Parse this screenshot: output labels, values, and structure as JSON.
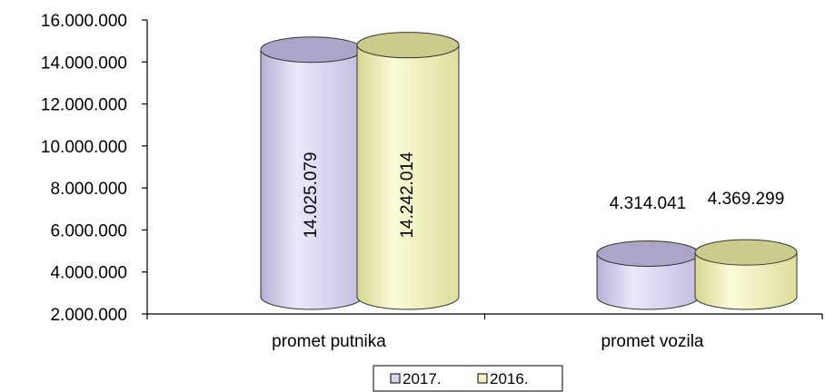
{
  "chart_data": {
    "type": "bar",
    "style": "3d-cylinder",
    "categories": [
      "promet putnika",
      "promet vozila"
    ],
    "series": [
      {
        "name": "2017.",
        "values": [
          14025079,
          4314041
        ],
        "value_labels": [
          "14.025.079",
          "4.314.041"
        ],
        "color": "#D9D3EE"
      },
      {
        "name": "2016.",
        "values": [
          14242014,
          4369299
        ],
        "value_labels": [
          "14.242.014",
          "4.369.299"
        ],
        "color": "#F0F0C2"
      }
    ],
    "y_ticks": [
      "2.000.000",
      "4.000.000",
      "6.000.000",
      "8.000.000",
      "10.000.000",
      "12.000.000",
      "14.000.000",
      "16.000.000"
    ],
    "ylim": [
      2000000,
      16000000
    ],
    "grid": false,
    "legend": {
      "position": "bottom",
      "labels": [
        "2017.",
        "2016."
      ]
    },
    "label_placement": [
      "rotated-inside",
      "above"
    ]
  }
}
